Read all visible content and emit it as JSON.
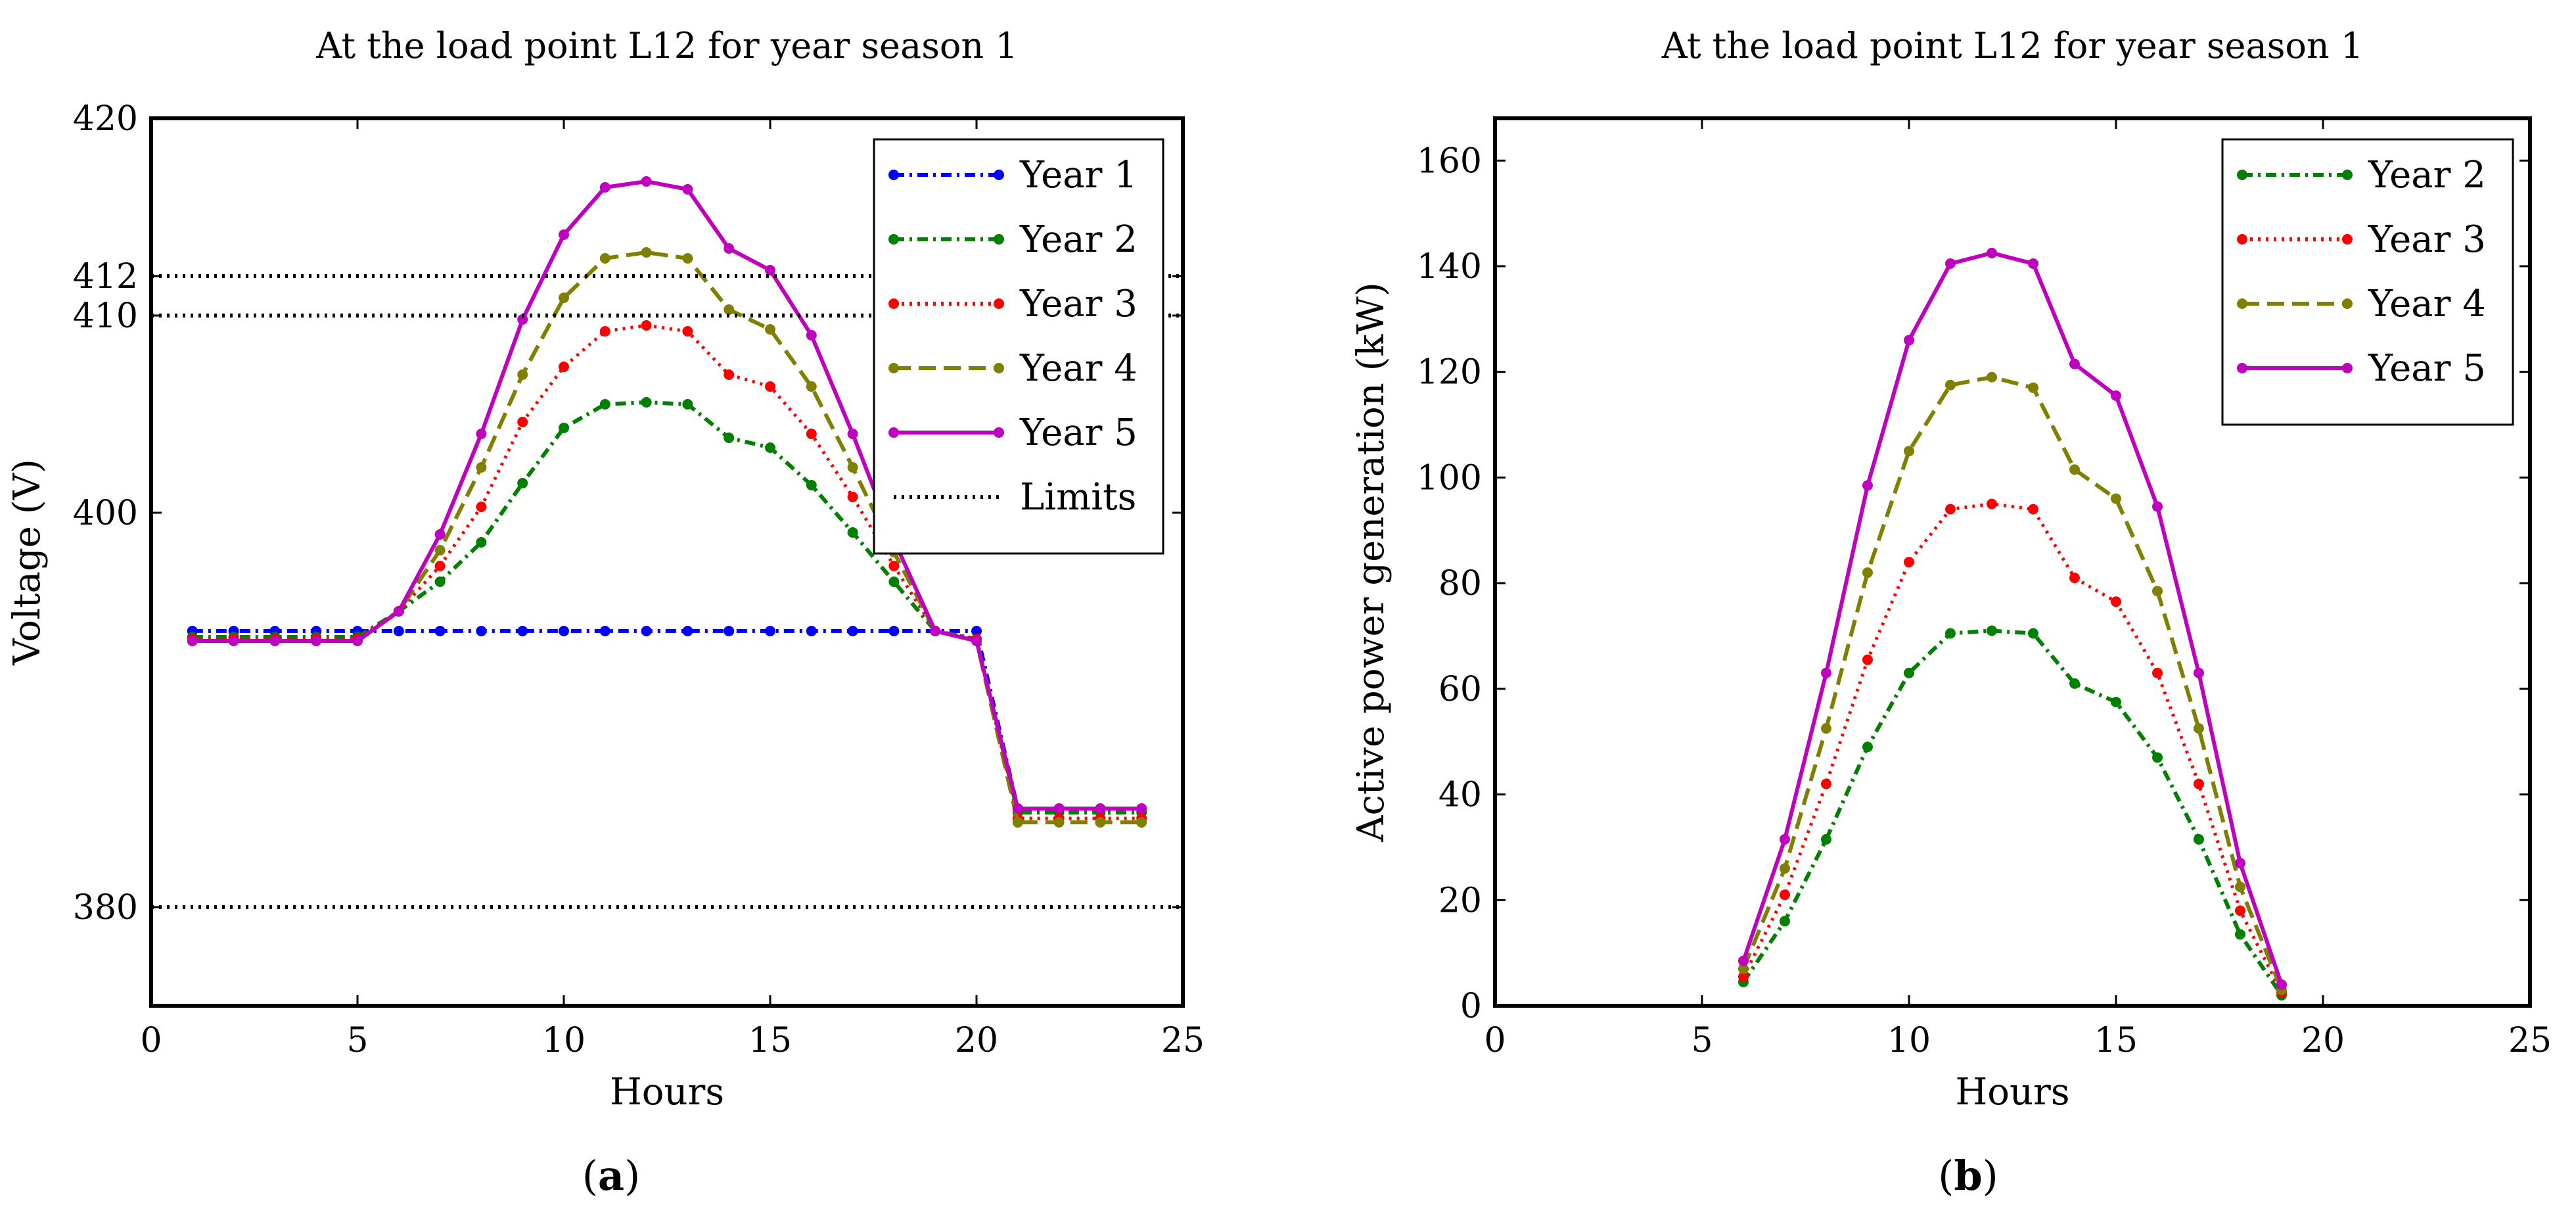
{
  "figure": {
    "panels": [
      {
        "letter": "a"
      },
      {
        "letter": "b"
      }
    ]
  },
  "chart_data": [
    {
      "type": "line",
      "title": "At the load point L12 for year season 1",
      "xlabel": "Hours",
      "ylabel": "Voltage (V)",
      "xlim": [
        0,
        25
      ],
      "ylim": [
        375,
        420
      ],
      "xticks": [
        0,
        5,
        10,
        15,
        20,
        25
      ],
      "yticks": [
        380,
        400,
        410,
        412,
        420
      ],
      "grid": false,
      "legend": "top-right",
      "series": [
        {
          "name": "Year 1",
          "color": "#0000ff",
          "style": "dashdot",
          "x": [
            1,
            2,
            3,
            4,
            5,
            6,
            7,
            8,
            9,
            10,
            11,
            12,
            13,
            14,
            15,
            16,
            17,
            18,
            19,
            20,
            21,
            22,
            23,
            24
          ],
          "y": [
            394,
            394,
            394,
            394,
            394,
            394,
            394,
            394,
            394,
            394,
            394,
            394,
            394,
            394,
            394,
            394,
            394,
            394,
            394,
            394,
            385,
            385,
            385,
            385
          ]
        },
        {
          "name": "Year 2",
          "color": "#008000",
          "style": "dashdot",
          "x": [
            1,
            2,
            3,
            4,
            5,
            6,
            7,
            8,
            9,
            10,
            11,
            12,
            13,
            14,
            15,
            16,
            17,
            18,
            19,
            20,
            21,
            22,
            23,
            24
          ],
          "y": [
            393.7,
            393.7,
            393.7,
            393.7,
            393.7,
            395,
            396.5,
            398.5,
            401.5,
            404.3,
            405.5,
            405.6,
            405.5,
            403.8,
            403.3,
            401.4,
            399,
            396.5,
            394,
            393.6,
            384.8,
            384.8,
            384.8,
            384.8
          ]
        },
        {
          "name": "Year 3",
          "color": "#ff0000",
          "style": "dotted",
          "x": [
            1,
            2,
            3,
            4,
            5,
            6,
            7,
            8,
            9,
            10,
            11,
            12,
            13,
            14,
            15,
            16,
            17,
            18,
            19,
            20,
            21,
            22,
            23,
            24
          ],
          "y": [
            393.6,
            393.6,
            393.6,
            393.6,
            393.6,
            395,
            397.3,
            400.3,
            404.6,
            407.4,
            409.2,
            409.5,
            409.2,
            407,
            406.4,
            404,
            400.8,
            397.3,
            394,
            393.6,
            384.5,
            384.5,
            384.5,
            384.5
          ]
        },
        {
          "name": "Year 4",
          "color": "#808000",
          "style": "dashed",
          "x": [
            1,
            2,
            3,
            4,
            5,
            6,
            7,
            8,
            9,
            10,
            11,
            12,
            13,
            14,
            15,
            16,
            17,
            18,
            19,
            20,
            21,
            22,
            23,
            24
          ],
          "y": [
            393.5,
            393.5,
            393.5,
            393.5,
            393.5,
            395,
            398.1,
            402.3,
            407,
            410.9,
            412.9,
            413.2,
            412.9,
            410.3,
            409.3,
            406.4,
            402.3,
            398,
            394,
            393.5,
            384.3,
            384.3,
            384.3,
            384.3
          ]
        },
        {
          "name": "Year 5",
          "color": "#bf00bf",
          "style": "solid",
          "x": [
            1,
            2,
            3,
            4,
            5,
            6,
            7,
            8,
            9,
            10,
            11,
            12,
            13,
            14,
            15,
            16,
            17,
            18,
            19,
            20,
            21,
            22,
            23,
            24
          ],
          "y": [
            393.5,
            393.5,
            393.5,
            393.5,
            393.5,
            395,
            398.9,
            404,
            409.8,
            414.1,
            416.5,
            416.8,
            416.4,
            413.4,
            412.3,
            409,
            404,
            398.6,
            394,
            393.5,
            385,
            385,
            385,
            385
          ]
        },
        {
          "name": "Limits",
          "color": "#000000",
          "style": "dotted",
          "markers": false,
          "segments": [
            {
              "x": [
                0,
                25
              ],
              "y": [
                412,
                412
              ]
            },
            {
              "x": [
                0,
                25
              ],
              "y": [
                410,
                410
              ]
            },
            {
              "x": [
                0,
                25
              ],
              "y": [
                380,
                380
              ]
            }
          ]
        }
      ]
    },
    {
      "type": "line",
      "title": "At the load point L12 for year season 1",
      "xlabel": "Hours",
      "ylabel": "Active power generation (kW)",
      "xlim": [
        0,
        25
      ],
      "ylim": [
        0,
        168
      ],
      "xticks": [
        0,
        5,
        10,
        15,
        20,
        25
      ],
      "yticks": [
        0,
        20,
        40,
        60,
        80,
        100,
        120,
        140,
        160
      ],
      "grid": false,
      "legend": "top-right",
      "series": [
        {
          "name": "Year 2",
          "color": "#008000",
          "style": "dashdot",
          "x": [
            6,
            7,
            8,
            9,
            10,
            11,
            12,
            13,
            14,
            15,
            16,
            17,
            18,
            19
          ],
          "y": [
            4.5,
            16,
            31.5,
            49,
            63,
            70.5,
            71,
            70.5,
            61,
            57.5,
            47,
            31.5,
            13.5,
            2
          ]
        },
        {
          "name": "Year 3",
          "color": "#ff0000",
          "style": "dotted",
          "x": [
            6,
            7,
            8,
            9,
            10,
            11,
            12,
            13,
            14,
            15,
            16,
            17,
            18,
            19
          ],
          "y": [
            5.5,
            21,
            42,
            65.5,
            84,
            94,
            95,
            94,
            81,
            76.5,
            63,
            42,
            18,
            2.5
          ]
        },
        {
          "name": "Year 4",
          "color": "#808000",
          "style": "dashed",
          "x": [
            6,
            7,
            8,
            9,
            10,
            11,
            12,
            13,
            14,
            15,
            16,
            17,
            18,
            19
          ],
          "y": [
            7,
            26,
            52.5,
            82,
            105,
            117.5,
            119,
            117,
            101.5,
            96,
            78.5,
            52.5,
            22.5,
            3
          ]
        },
        {
          "name": "Year 5",
          "color": "#bf00bf",
          "style": "solid",
          "x": [
            6,
            7,
            8,
            9,
            10,
            11,
            12,
            13,
            14,
            15,
            16,
            17,
            18,
            19
          ],
          "y": [
            8.5,
            31.5,
            63,
            98.5,
            126,
            140.5,
            142.5,
            140.5,
            121.5,
            115.5,
            94.5,
            63,
            27,
            4
          ]
        }
      ]
    }
  ]
}
